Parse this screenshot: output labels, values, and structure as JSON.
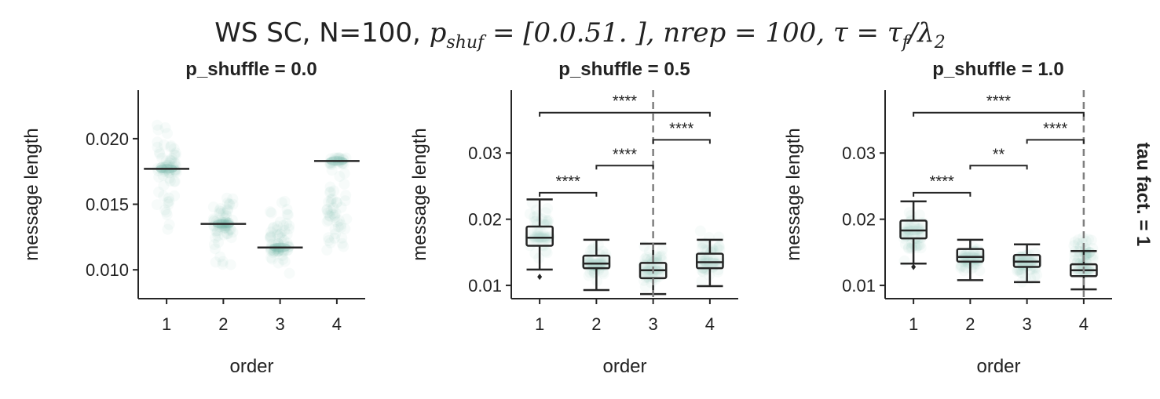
{
  "figure": {
    "suptitle_prefix": "WS SC, N=100,",
    "suptitle_math": "p_shuf = [0. 0.5 1. ], nrep = 100, τ = τ_f/λ_2",
    "row_label": "tau fact. = 1"
  },
  "colors": {
    "points": "#5fa89a",
    "box": "#262626",
    "dashed": "#7f7f7f",
    "text": "#222222"
  },
  "chart_data": [
    {
      "type": "box",
      "title": "p_shuffle = 0.0",
      "xlabel": "order",
      "ylabel": "message length",
      "categories": [
        "1",
        "2",
        "3",
        "4"
      ],
      "ylim": [
        0.0078,
        0.0237
      ],
      "yticks": [
        0.01,
        0.015,
        0.02
      ],
      "ytick_labels": [
        "0.010",
        "0.015",
        "0.020"
      ],
      "boxes": [
        {
          "med": 0.0177,
          "q1": 0.0177,
          "q3": 0.0177,
          "lo": 0.0177,
          "hi": 0.0177,
          "spread": [
            0.011,
            0.023
          ]
        },
        {
          "med": 0.0135,
          "q1": 0.0135,
          "q3": 0.0135,
          "lo": 0.0135,
          "hi": 0.0135,
          "spread": [
            0.01,
            0.0165
          ]
        },
        {
          "med": 0.0117,
          "q1": 0.0117,
          "q3": 0.0117,
          "lo": 0.0117,
          "hi": 0.0117,
          "spread": [
            0.0088,
            0.016
          ]
        },
        {
          "med": 0.0183,
          "q1": 0.0183,
          "q3": 0.0183,
          "lo": 0.0183,
          "hi": 0.0183,
          "spread": [
            0.01,
            0.0186
          ]
        }
      ],
      "dashed_at": null,
      "annotations": []
    },
    {
      "type": "box",
      "title": "p_shuffle = 0.5",
      "xlabel": "order",
      "ylabel": "message length",
      "categories": [
        "1",
        "2",
        "3",
        "4"
      ],
      "ylim": [
        0.008,
        0.0395
      ],
      "yticks": [
        0.01,
        0.02,
        0.03
      ],
      "ytick_labels": [
        "0.01",
        "0.02",
        "0.03"
      ],
      "boxes": [
        {
          "med": 0.0172,
          "q1": 0.016,
          "q3": 0.0189,
          "lo": 0.0124,
          "hi": 0.023,
          "fliers": [
            0.0113
          ],
          "spread": [
            0.012,
            0.0235
          ]
        },
        {
          "med": 0.0133,
          "q1": 0.0126,
          "q3": 0.0145,
          "lo": 0.0093,
          "hi": 0.0169,
          "fliers": [],
          "spread": [
            0.0095,
            0.017
          ]
        },
        {
          "med": 0.0123,
          "q1": 0.0111,
          "q3": 0.0134,
          "lo": 0.0087,
          "hi": 0.0163,
          "fliers": [],
          "spread": [
            0.0088,
            0.0165
          ]
        },
        {
          "med": 0.0135,
          "q1": 0.0126,
          "q3": 0.0148,
          "lo": 0.0099,
          "hi": 0.0169,
          "fliers": [],
          "spread": [
            0.01,
            0.0186
          ]
        }
      ],
      "dashed_at": "3",
      "annotations": [
        {
          "from": "1",
          "to": "2",
          "y": 0.024,
          "label": "****"
        },
        {
          "from": "2",
          "to": "3",
          "y": 0.0281,
          "label": "****"
        },
        {
          "from": "3",
          "to": "4",
          "y": 0.032,
          "label": "****"
        },
        {
          "from": "1",
          "to": "4",
          "y": 0.0361,
          "label": "****"
        }
      ]
    },
    {
      "type": "box",
      "title": "p_shuffle = 1.0",
      "xlabel": "order",
      "ylabel": "message length",
      "categories": [
        "1",
        "2",
        "3",
        "4"
      ],
      "ylim": [
        0.008,
        0.0395
      ],
      "yticks": [
        0.01,
        0.02,
        0.03
      ],
      "ytick_labels": [
        "0.01",
        "0.02",
        "0.03"
      ],
      "boxes": [
        {
          "med": 0.0183,
          "q1": 0.0171,
          "q3": 0.0198,
          "lo": 0.0133,
          "hi": 0.0227,
          "fliers": [
            0.0128
          ],
          "spread": [
            0.013,
            0.0228
          ]
        },
        {
          "med": 0.0143,
          "q1": 0.0136,
          "q3": 0.0155,
          "lo": 0.0108,
          "hi": 0.0169,
          "fliers": [],
          "spread": [
            0.0105,
            0.017
          ]
        },
        {
          "med": 0.0136,
          "q1": 0.0128,
          "q3": 0.0146,
          "lo": 0.0105,
          "hi": 0.0162,
          "fliers": [],
          "spread": [
            0.01,
            0.0165
          ]
        },
        {
          "med": 0.0123,
          "q1": 0.0114,
          "q3": 0.0132,
          "lo": 0.0094,
          "hi": 0.0152,
          "fliers": [],
          "spread": [
            0.0095,
            0.0186
          ]
        }
      ],
      "dashed_at": "4",
      "annotations": [
        {
          "from": "1",
          "to": "2",
          "y": 0.024,
          "label": "****"
        },
        {
          "from": "2",
          "to": "3",
          "y": 0.0281,
          "label": "**"
        },
        {
          "from": "3",
          "to": "4",
          "y": 0.032,
          "label": "****"
        },
        {
          "from": "1",
          "to": "4",
          "y": 0.0361,
          "label": "****"
        }
      ]
    }
  ]
}
